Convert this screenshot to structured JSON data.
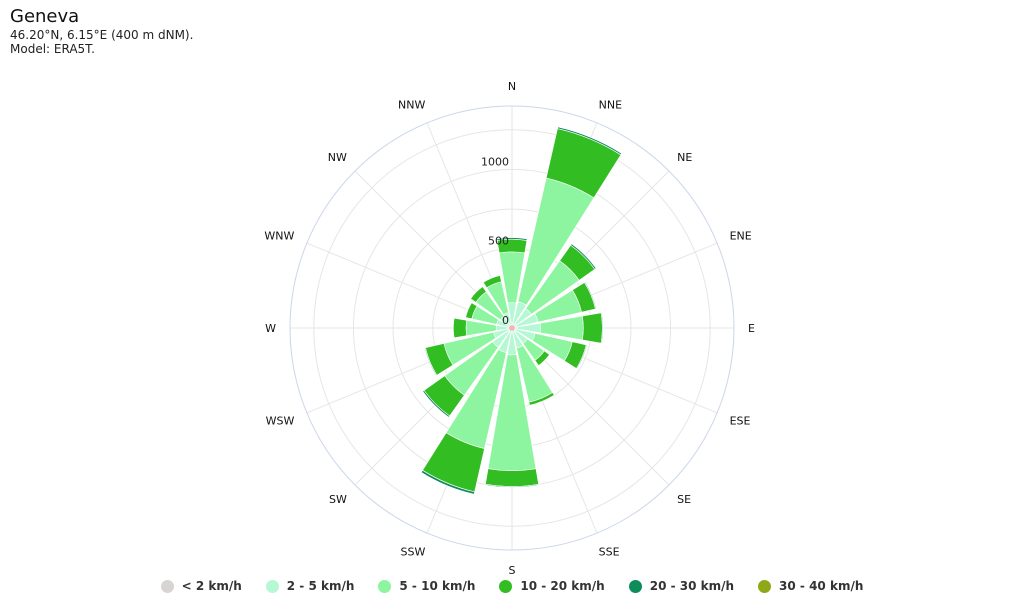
{
  "header": {
    "title": "Geneva",
    "coords": "46.20°N, 6.15°E (400 m dNM).",
    "model": "Model: ERA5T."
  },
  "chart_data": {
    "type": "wind-rose",
    "directions": [
      "N",
      "NNE",
      "NE",
      "ENE",
      "E",
      "ESE",
      "SE",
      "SSE",
      "S",
      "SSW",
      "SW",
      "WSW",
      "W",
      "WNW",
      "NW",
      "NNW"
    ],
    "radial_ticks": [
      "0",
      "500",
      "1000"
    ],
    "radial_max": 1400,
    "series": [
      {
        "name": "< 2 km/h",
        "color": "#d8d4d4",
        "values": [
          20,
          20,
          20,
          20,
          20,
          20,
          20,
          20,
          20,
          20,
          20,
          20,
          20,
          20,
          20,
          20
        ]
      },
      {
        "name": "2 - 5 km/h",
        "color": "#b6f7d4",
        "values": [
          140,
          150,
          130,
          150,
          160,
          130,
          100,
          110,
          150,
          140,
          130,
          100,
          80,
          80,
          70,
          80
        ]
      },
      {
        "name": "5 - 10 km/h",
        "color": "#8df49f",
        "values": [
          320,
          800,
          370,
          280,
          270,
          240,
          130,
          350,
          730,
          620,
          370,
          320,
          190,
          160,
          190,
          200
        ]
      },
      {
        "name": "10 - 20 km/h",
        "color": "#32bd22",
        "values": [
          80,
          320,
          120,
          90,
          120,
          90,
          40,
          20,
          100,
          280,
          160,
          120,
          80,
          40,
          40,
          40
        ]
      },
      {
        "name": "20 - 30 km/h",
        "color": "#0e8c5a",
        "values": [
          10,
          10,
          10,
          5,
          5,
          5,
          0,
          0,
          5,
          15,
          10,
          5,
          0,
          0,
          0,
          0
        ]
      },
      {
        "name": "30 - 40 km/h",
        "color": "#8fa818",
        "values": [
          0,
          0,
          0,
          0,
          0,
          0,
          0,
          0,
          0,
          0,
          0,
          0,
          0,
          0,
          0,
          0
        ]
      }
    ]
  }
}
